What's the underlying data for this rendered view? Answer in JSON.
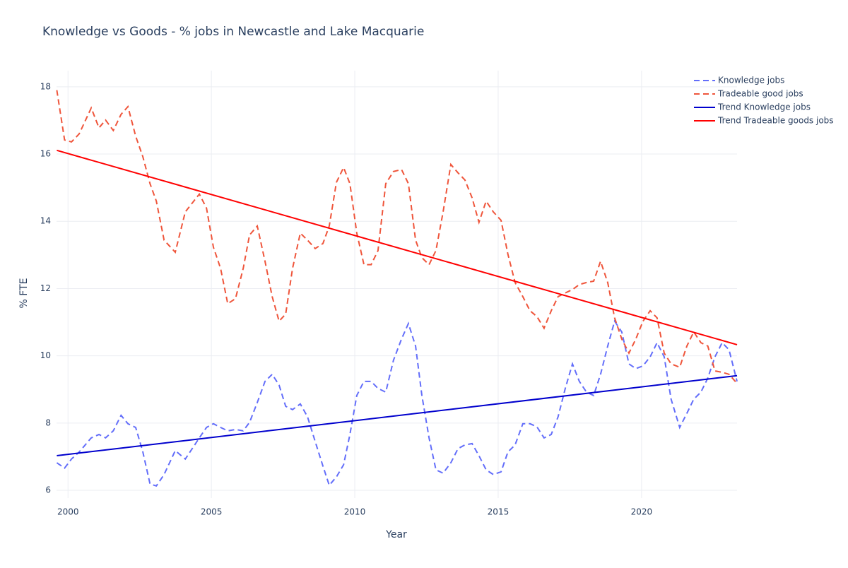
{
  "chart_data": {
    "type": "line",
    "title": "Knowledge vs Goods - % jobs in Newcastle and Lake Macquarie",
    "x_label": "Year",
    "y_label": "% FTE",
    "xlim": [
      1999.6,
      2023.33
    ],
    "ylim": [
      5.77,
      18.48
    ],
    "xticks": [
      2000,
      2005,
      2010,
      2015,
      2020
    ],
    "yticks": [
      6,
      8,
      10,
      12,
      14,
      16,
      18
    ],
    "grid": true,
    "legend": "top-right",
    "x": [
      1999.61,
      1999.88,
      2000.12,
      2000.39,
      2000.81,
      2001.08,
      2001.31,
      2001.58,
      2001.85,
      2002.09,
      2002.36,
      2002.61,
      2002.86,
      2003.08,
      2003.35,
      2003.74,
      2004.09,
      2004.58,
      2004.83,
      2005.07,
      2005.32,
      2005.57,
      2005.84,
      2006.11,
      2006.33,
      2006.6,
      2006.87,
      2007.12,
      2007.36,
      2007.59,
      2007.83,
      2008.1,
      2008.35,
      2008.62,
      2008.89,
      2009.11,
      2009.36,
      2009.61,
      2009.83,
      2010.07,
      2010.32,
      2010.57,
      2010.81,
      2011.08,
      2011.35,
      2011.63,
      2011.87,
      2012.12,
      2012.34,
      2012.59,
      2012.83,
      2013.08,
      2013.35,
      2013.6,
      2013.84,
      2014.09,
      2014.33,
      2014.58,
      2014.83,
      2015.1,
      2015.34,
      2015.59,
      2015.86,
      2016.11,
      2016.35,
      2016.6,
      2016.85,
      2017.09,
      2017.34,
      2017.59,
      2017.83,
      2018.08,
      2018.33,
      2018.57,
      2018.82,
      2019.06,
      2019.31,
      2019.56,
      2019.8,
      2020.05,
      2020.3,
      2020.54,
      2020.79,
      2021.03,
      2021.33,
      2021.58,
      2021.82,
      2022.07,
      2022.31,
      2022.56,
      2022.81,
      2023.05,
      2023.33
    ],
    "series": [
      {
        "name": "Knowledge jobs",
        "color": "#636efa",
        "dash": "dash",
        "values": [
          6.82,
          6.66,
          6.93,
          7.14,
          7.56,
          7.66,
          7.56,
          7.77,
          8.23,
          7.98,
          7.87,
          7.14,
          6.19,
          6.13,
          6.47,
          7.18,
          6.93,
          7.56,
          7.87,
          7.98,
          7.87,
          7.77,
          7.81,
          7.77,
          8.02,
          8.61,
          9.24,
          9.45,
          9.13,
          8.5,
          8.4,
          8.57,
          8.19,
          7.45,
          6.72,
          6.15,
          6.4,
          6.76,
          7.66,
          8.82,
          9.24,
          9.24,
          9.03,
          8.92,
          9.87,
          10.5,
          10.96,
          10.29,
          8.82,
          7.56,
          6.61,
          6.51,
          6.82,
          7.24,
          7.35,
          7.39,
          7.03,
          6.61,
          6.47,
          6.55,
          7.14,
          7.35,
          7.98,
          7.98,
          7.89,
          7.56,
          7.66,
          8.19,
          9.03,
          9.76,
          9.24,
          8.92,
          8.82,
          9.45,
          10.29,
          11.03,
          10.71,
          9.76,
          9.62,
          9.7,
          9.97,
          10.39,
          9.97,
          8.71,
          7.87,
          8.29,
          8.71,
          8.92,
          9.34,
          9.97,
          10.39,
          10.18,
          9.24
        ]
      },
      {
        "name": "Tradeable good jobs",
        "color": "#ef553b",
        "dash": "dash",
        "values": [
          17.9,
          16.42,
          16.36,
          16.6,
          17.37,
          16.78,
          17.01,
          16.7,
          17.18,
          17.41,
          16.53,
          15.92,
          15.12,
          14.6,
          13.44,
          13.08,
          14.28,
          14.81,
          14.39,
          13.23,
          12.6,
          11.55,
          11.7,
          12.6,
          13.59,
          13.86,
          12.81,
          11.76,
          11.03,
          11.24,
          12.6,
          13.65,
          13.44,
          13.19,
          13.34,
          13.86,
          15.16,
          15.6,
          15.12,
          13.65,
          12.71,
          12.71,
          13.13,
          15.12,
          15.48,
          15.54,
          15.12,
          13.44,
          12.92,
          12.71,
          13.13,
          14.28,
          15.69,
          15.44,
          15.23,
          14.7,
          13.97,
          14.6,
          14.28,
          14.03,
          13.02,
          12.18,
          11.76,
          11.34,
          11.17,
          10.82,
          11.34,
          11.76,
          11.87,
          11.97,
          12.12,
          12.18,
          12.22,
          12.81,
          12.18,
          11.13,
          10.5,
          10.08,
          10.5,
          11.03,
          11.34,
          11.13,
          10.08,
          9.76,
          9.66,
          10.29,
          10.71,
          10.39,
          10.29,
          9.55,
          9.51,
          9.45,
          9.18
        ]
      },
      {
        "name": "Trend Knowledge jobs",
        "color": "#0000cd",
        "dash": "solid",
        "x": [
          1999.61,
          2023.33
        ],
        "values": [
          7.03,
          9.41
        ]
      },
      {
        "name": "Trend Tradeable goods jobs",
        "color": "#ff0000",
        "dash": "solid",
        "x": [
          1999.61,
          2023.33
        ],
        "values": [
          16.11,
          10.33
        ]
      }
    ]
  }
}
